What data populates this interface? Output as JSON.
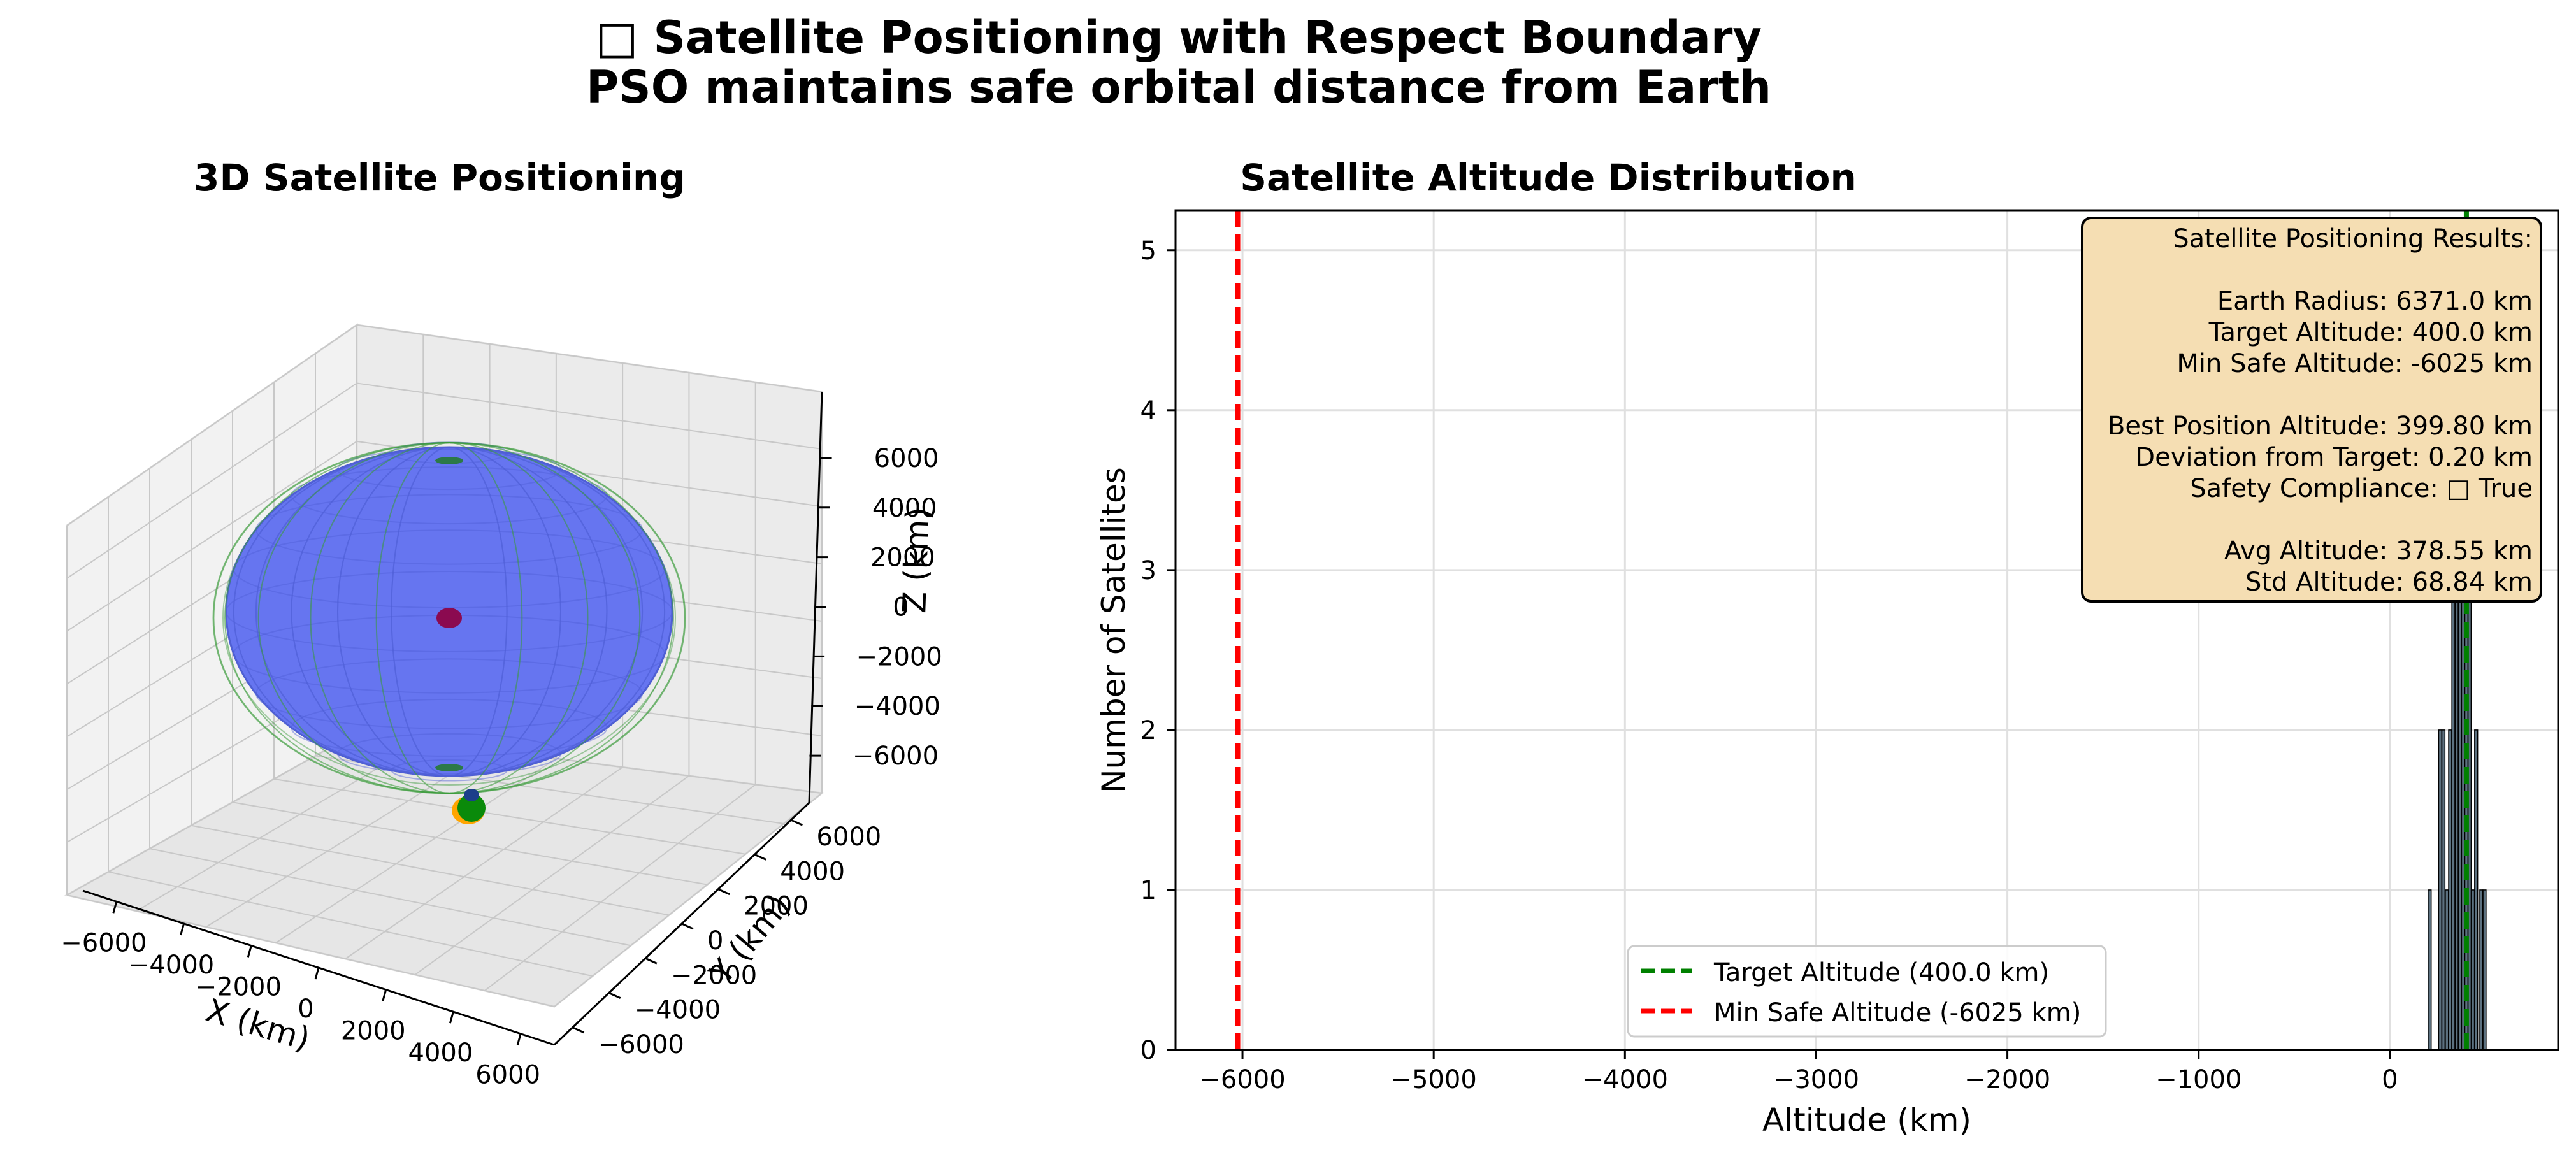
{
  "figure": {
    "title_line1": "□  Satellite Positioning with Respect Boundary",
    "title_line2": "PSO maintains safe orbital distance from Earth"
  },
  "colors": {
    "earth": "#6675f0",
    "boundary": "#3a9a3a",
    "target_line": "#008000",
    "min_safe_line": "#ff0000",
    "bars": "#5c7180",
    "info_box": "#f5deb3",
    "satellites_orange": "#ffa500",
    "center_point": "#8b0a50"
  },
  "chart_data": [
    {
      "type": "scatter",
      "title": "3D Satellite Positioning",
      "xlabel": "X (km)",
      "ylabel": "Y (km)",
      "zlabel": "Z (km)",
      "xlim": [
        -7000,
        7000
      ],
      "ylim": [
        -7000,
        7000
      ],
      "zlim": [
        -7000,
        7000
      ],
      "x_ticks": [
        "−6000",
        "−4000",
        "−2000",
        "0",
        "2000",
        "4000",
        "6000"
      ],
      "y_ticks": [
        "−6000",
        "−4000",
        "−2000",
        "0",
        "2000",
        "4000",
        "6000"
      ],
      "z_ticks": [
        "6000",
        "4000",
        "2000",
        "0",
        "−2000",
        "−4000",
        "−6000"
      ],
      "earth_radius_km": 6371.0,
      "boundary_radius_km": 6771.0,
      "grid": true,
      "satellite_cluster": {
        "color_outer": "orange",
        "color_inner": "green"
      }
    },
    {
      "type": "bar",
      "title": "Satellite Altitude Distribution",
      "xlabel": "Altitude (km)",
      "ylabel": "Number of Satellites",
      "xlim": [
        -6350,
        880
      ],
      "ylim": [
        0,
        5.25
      ],
      "x_ticks": [
        -6000,
        -5000,
        -4000,
        -3000,
        -2000,
        -1000,
        0
      ],
      "x_tick_labels": [
        "−6000",
        "−5000",
        "−4000",
        "−3000",
        "−2000",
        "−1000",
        "0"
      ],
      "y_ticks": [
        0,
        1,
        2,
        3,
        4,
        5
      ],
      "y_tick_labels": [
        "0",
        "1",
        "2",
        "3",
        "4",
        "5"
      ],
      "grid": true,
      "histogram_bins": [
        {
          "x0": 200,
          "x1": 216,
          "count": 1
        },
        {
          "x0": 255,
          "x1": 271,
          "count": 2
        },
        {
          "x0": 272,
          "x1": 288,
          "count": 2
        },
        {
          "x0": 290,
          "x1": 306,
          "count": 1
        },
        {
          "x0": 307,
          "x1": 323,
          "count": 2
        },
        {
          "x0": 324,
          "x1": 340,
          "count": 3
        },
        {
          "x0": 341,
          "x1": 357,
          "count": 4
        },
        {
          "x0": 358,
          "x1": 374,
          "count": 4
        },
        {
          "x0": 375,
          "x1": 391,
          "count": 5
        },
        {
          "x0": 392,
          "x1": 408,
          "count": 5
        },
        {
          "x0": 409,
          "x1": 425,
          "count": 3
        },
        {
          "x0": 426,
          "x1": 442,
          "count": 1
        },
        {
          "x0": 443,
          "x1": 459,
          "count": 2
        },
        {
          "x0": 470,
          "x1": 486,
          "count": 1
        },
        {
          "x0": 487,
          "x1": 503,
          "count": 1
        }
      ],
      "lines": [
        {
          "name": "Target Altitude (400.0 km)",
          "x": 400.0,
          "color": "green",
          "style": "dashed"
        },
        {
          "name": "Min Safe Altitude (-6025 km)",
          "x": -6025,
          "color": "red",
          "style": "dashed"
        }
      ],
      "legend_position": "lower-center",
      "info_box_position": "top-right",
      "info_box": [
        "Satellite Positioning Results:",
        "",
        "Earth Radius: 6371.0 km",
        "Target Altitude: 400.0 km",
        "Min Safe Altitude: -6025 km",
        "",
        "Best Position Altitude: 399.80 km",
        "Deviation from Target: 0.20 km",
        "Safety Compliance: □ True",
        "",
        "Avg Altitude: 378.55 km",
        "Std Altitude: 68.84 km"
      ]
    }
  ]
}
